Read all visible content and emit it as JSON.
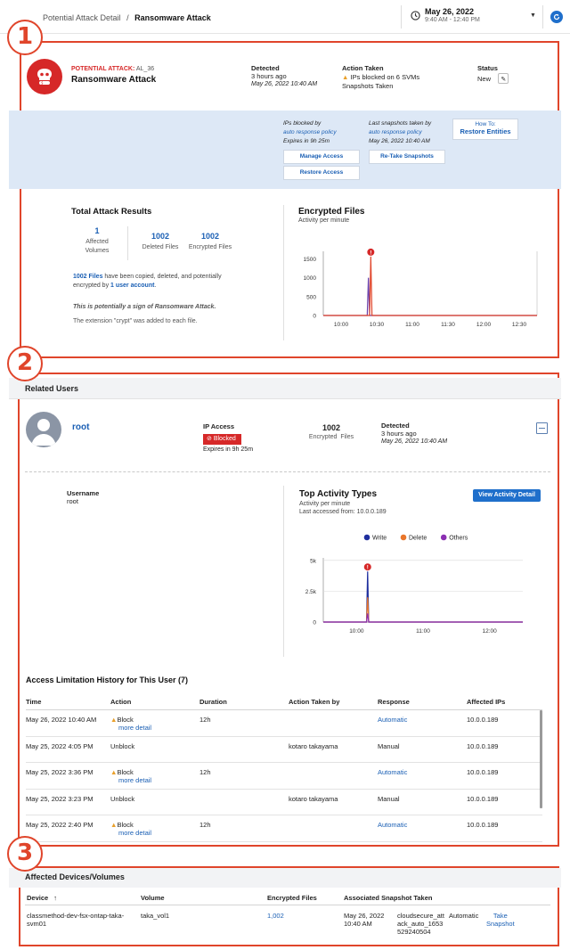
{
  "header": {
    "breadcrumb_prev": "Potential Attack Detail",
    "separator": "/",
    "title": "Ransomware Attack",
    "date": "May 26, 2022",
    "time_range": "9:40 AM - 12:40 PM"
  },
  "annotations": [
    "1",
    "2",
    "3"
  ],
  "attack": {
    "label": "POTENTIAL ATTACK:",
    "id": "AL_36",
    "name": "Ransomware Attack",
    "detected_label": "Detected",
    "detected_ago": "3 hours ago",
    "detected_date": "May 26, 2022 10:40 AM",
    "action_label": "Action Taken",
    "action_1": "IPs blocked on 6 SVMs",
    "action_2": "Snapshots Taken",
    "status_label": "Status",
    "status_value": "New"
  },
  "blue_panel": {
    "ips_blocked_by": "IPs blocked by",
    "auto_policy_1": "auto response policy",
    "expires": "Expires in 9h 25m",
    "last_snapshots": "Last snapshots taken by",
    "auto_policy_2": "auto response policy",
    "snap_date": "May 26, 2022 10:40 AM",
    "manage_access": "Manage Access",
    "restore_access": "Restore Access",
    "retake_snapshots": "Re-Take Snapshots",
    "howto": "How To:",
    "restore_entities": "Restore Entities"
  },
  "results": {
    "title": "Total Attack Results",
    "volumes_value": "1",
    "volumes_label_1": "Affected",
    "volumes_label_2": "Volumes",
    "deleted_value": "1002",
    "deleted_label": "Deleted Files",
    "encrypted_value": "1002",
    "encrypted_label": "Encrypted Files",
    "desc_link": "1002 Files",
    "desc_text": " have been copied, deleted, and potentially",
    "desc_text2": "encrypted by ",
    "desc_link2": "1 user account",
    "desc_end": ".",
    "sign": "This is potentially a sign of Ransomware Attack.",
    "extension": "The extension \"crypt\" was added to each file."
  },
  "chart1_text": {
    "title": "Encrypted Files",
    "subtitle": "Activity per minute"
  },
  "related": {
    "title": "Related Users",
    "user": "root",
    "ip_access_label": "IP Access",
    "blocked": "Blocked",
    "expires": "Expires in 9h 25m",
    "files_value": "1002",
    "files_label": "Encrypted  Files",
    "detected_label": "Detected",
    "detected_ago": "3 hours ago",
    "detected_date": "May 26, 2022 10:40 AM",
    "username_label": "Username",
    "username_value": "root",
    "top_title": "Top Activity Types",
    "top_sub": "Activity per minute",
    "last_access": "Last accessed from: 10.0.0.189",
    "view_btn": "View Activity Detail"
  },
  "history": {
    "title": "Access Limitation History for This User (7)",
    "columns": [
      "Time",
      "Action",
      "Duration",
      "Action Taken by",
      "Response",
      "Affected IPs"
    ],
    "more_detail": "more detail",
    "rows": [
      {
        "time": "May 26, 2022 10:40 AM",
        "action": "Block",
        "duration": "12h",
        "by": "",
        "response": "Automatic",
        "ip": "10.0.0.189"
      },
      {
        "time": "May 25, 2022 4:05 PM",
        "action": "Unblock",
        "duration": "",
        "by": "kotaro takayama",
        "response": "Manual",
        "ip": "10.0.0.189"
      },
      {
        "time": "May 25, 2022 3:36 PM",
        "action": "Block",
        "duration": "12h",
        "by": "",
        "response": "Automatic",
        "ip": "10.0.0.189"
      },
      {
        "time": "May 25, 2022 3:23 PM",
        "action": "Unblock",
        "duration": "",
        "by": "kotaro takayama",
        "response": "Manual",
        "ip": "10.0.0.189"
      },
      {
        "time": "May 25, 2022 2:40 PM",
        "action": "Block",
        "duration": "12h",
        "by": "",
        "response": "Automatic",
        "ip": "10.0.0.189"
      }
    ]
  },
  "devices": {
    "title": "Affected Devices/Volumes",
    "col_device": "Device",
    "sort_arrow": "↑",
    "col_volume": "Volume",
    "col_files": "Encrypted Files",
    "col_snap": "Associated Snapshot Taken",
    "device_1": "classmethod-dev-fsx-ontap-taka-",
    "device_2": "svm01",
    "volume": "taka_vol1",
    "files": "1,002",
    "snap_date_1": "May 26, 2022",
    "snap_date_2": "10:40 AM",
    "snap_name_1": "cloudsecure_att",
    "snap_name_2": "ack_auto_1653",
    "snap_name_3": "529240504",
    "snap_type": "Automatic",
    "take_1": "Take",
    "take_2": "Snapshot"
  },
  "chart_data": [
    {
      "type": "line",
      "title": "Encrypted Files",
      "subtitle": "Activity per minute",
      "x_ticks": [
        "10:00",
        "10:30",
        "11:00",
        "11:30",
        "12:00",
        "12:30"
      ],
      "y_ticks": [
        0,
        500,
        1000,
        1500
      ],
      "ylim": [
        0,
        1700
      ],
      "series": [
        {
          "values": [
            [
              0,
              0
            ],
            [
              37,
              0
            ],
            [
              38,
              1000
            ],
            [
              39,
              0
            ],
            [
              180,
              0
            ]
          ],
          "color": "#6a3fa8"
        },
        {
          "values": [
            [
              0,
              0
            ],
            [
              39,
              0
            ],
            [
              40,
              1560
            ],
            [
              41,
              0
            ],
            [
              180,
              0
            ]
          ],
          "color": "#e0452b"
        }
      ],
      "alert_marker_x": 40,
      "grid": false
    },
    {
      "type": "line",
      "title": "Top Activity Types",
      "subtitle": "Activity per minute",
      "x_ticks": [
        "10:00",
        "11:00",
        "12:00"
      ],
      "y_ticks": [
        "0",
        "2.5k",
        "5k"
      ],
      "ylim": [
        0,
        5200
      ],
      "legend": [
        "Write",
        "Delete",
        "Others"
      ],
      "legend_placement": "top",
      "series": [
        {
          "name": "Write",
          "color": "#1f2f9e",
          "values": [
            [
              0,
              0
            ],
            [
              39,
              0
            ],
            [
              40,
              4100
            ],
            [
              41,
              0
            ],
            [
              180,
              0
            ]
          ]
        },
        {
          "name": "Delete",
          "color": "#e9762b",
          "values": [
            [
              0,
              0
            ],
            [
              39,
              0
            ],
            [
              40,
              2000
            ],
            [
              41,
              0
            ],
            [
              180,
              0
            ]
          ]
        },
        {
          "name": "Others",
          "color": "#8b2fb2",
          "values": [
            [
              0,
              0
            ],
            [
              39,
              0
            ],
            [
              40,
              700
            ],
            [
              41,
              0
            ],
            [
              180,
              0
            ]
          ]
        }
      ],
      "alert_marker_x": 40,
      "grid": true
    }
  ]
}
